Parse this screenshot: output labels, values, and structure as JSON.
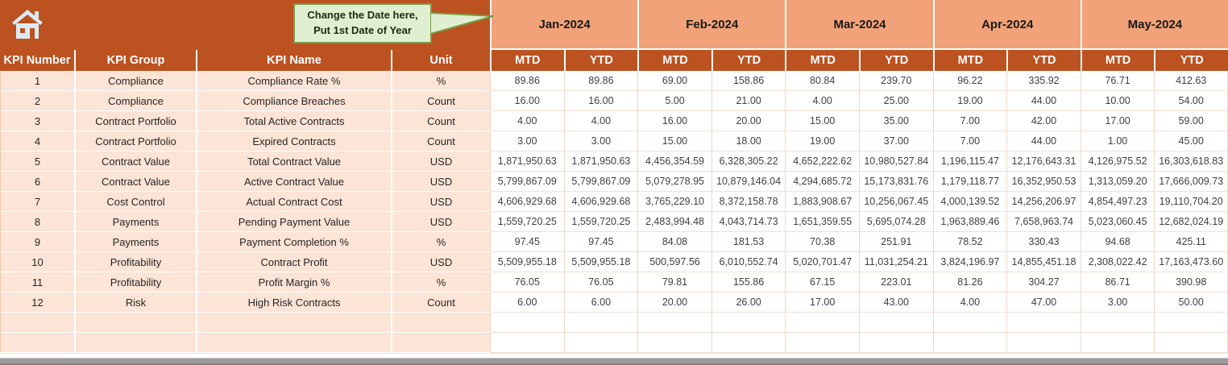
{
  "callout": {
    "line1": "Change the Date here,",
    "line2": "Put 1st Date of Year"
  },
  "header": {
    "kpi_number": "KPI Number",
    "kpi_group": "KPI Group",
    "kpi_name": "KPI Name",
    "unit": "Unit",
    "mtd": "MTD",
    "ytd": "YTD"
  },
  "months": [
    "Jan-2024",
    "Feb-2024",
    "Mar-2024",
    "Apr-2024",
    "May-2024"
  ],
  "icons": {
    "home": "house"
  },
  "colors": {
    "band_orange": "#BC5220",
    "month_peach": "#F1A278",
    "label_peach": "#FCE4D6",
    "callout_bg": "#DFEFD0",
    "callout_border": "#7A9B49",
    "scrollbar_gray": "#9B9B9B"
  },
  "empty_rows": 2,
  "rows": [
    {
      "number": "1",
      "group": "Compliance",
      "name": "Compliance Rate %",
      "unit": "%",
      "values": [
        "89.86",
        "89.86",
        "69.00",
        "158.86",
        "80.84",
        "239.70",
        "96.22",
        "335.92",
        "76.71",
        "412.63"
      ]
    },
    {
      "number": "2",
      "group": "Compliance",
      "name": "Compliance Breaches",
      "unit": "Count",
      "values": [
        "16.00",
        "16.00",
        "5.00",
        "21.00",
        "4.00",
        "25.00",
        "19.00",
        "44.00",
        "10.00",
        "54.00"
      ]
    },
    {
      "number": "3",
      "group": "Contract Portfolio",
      "name": "Total Active Contracts",
      "unit": "Count",
      "values": [
        "4.00",
        "4.00",
        "16.00",
        "20.00",
        "15.00",
        "35.00",
        "7.00",
        "42.00",
        "17.00",
        "59.00"
      ]
    },
    {
      "number": "4",
      "group": "Contract Portfolio",
      "name": "Expired Contracts",
      "unit": "Count",
      "values": [
        "3.00",
        "3.00",
        "15.00",
        "18.00",
        "19.00",
        "37.00",
        "7.00",
        "44.00",
        "1.00",
        "45.00"
      ]
    },
    {
      "number": "5",
      "group": "Contract Value",
      "name": "Total Contract Value",
      "unit": "USD",
      "values": [
        "1,871,950.63",
        "1,871,950.63",
        "4,456,354.59",
        "6,328,305.22",
        "4,652,222.62",
        "10,980,527.84",
        "1,196,115.47",
        "12,176,643.31",
        "4,126,975.52",
        "16,303,618.83"
      ]
    },
    {
      "number": "6",
      "group": "Contract Value",
      "name": "Active Contract Value",
      "unit": "USD",
      "values": [
        "5,799,867.09",
        "5,799,867.09",
        "5,079,278.95",
        "10,879,146.04",
        "4,294,685.72",
        "15,173,831.76",
        "1,179,118.77",
        "16,352,950.53",
        "1,313,059.20",
        "17,666,009.73"
      ]
    },
    {
      "number": "7",
      "group": "Cost Control",
      "name": "Actual Contract Cost",
      "unit": "USD",
      "values": [
        "4,606,929.68",
        "4,606,929.68",
        "3,765,229.10",
        "8,372,158.78",
        "1,883,908.67",
        "10,256,067.45",
        "4,000,139.52",
        "14,256,206.97",
        "4,854,497.23",
        "19,110,704.20"
      ]
    },
    {
      "number": "8",
      "group": "Payments",
      "name": "Pending Payment Value",
      "unit": "USD",
      "values": [
        "1,559,720.25",
        "1,559,720.25",
        "2,483,994.48",
        "4,043,714.73",
        "1,651,359.55",
        "5,695,074.28",
        "1,963,889.46",
        "7,658,963.74",
        "5,023,060.45",
        "12,682,024.19"
      ]
    },
    {
      "number": "9",
      "group": "Payments",
      "name": "Payment Completion %",
      "unit": "%",
      "values": [
        "97.45",
        "97.45",
        "84.08",
        "181.53",
        "70.38",
        "251.91",
        "78.52",
        "330.43",
        "94.68",
        "425.11"
      ]
    },
    {
      "number": "10",
      "group": "Profitability",
      "name": "Contract Profit",
      "unit": "USD",
      "values": [
        "5,509,955.18",
        "5,509,955.18",
        "500,597.56",
        "6,010,552.74",
        "5,020,701.47",
        "11,031,254.21",
        "3,824,196.97",
        "14,855,451.18",
        "2,308,022.42",
        "17,163,473.60"
      ]
    },
    {
      "number": "11",
      "group": "Profitability",
      "name": "Profit Margin %",
      "unit": "%",
      "values": [
        "76.05",
        "76.05",
        "79.81",
        "155.86",
        "67.15",
        "223.01",
        "81.26",
        "304.27",
        "86.71",
        "390.98"
      ]
    },
    {
      "number": "12",
      "group": "Risk",
      "name": "High Risk Contracts",
      "unit": "Count",
      "values": [
        "6.00",
        "6.00",
        "20.00",
        "26.00",
        "17.00",
        "43.00",
        "4.00",
        "47.00",
        "3.00",
        "50.00"
      ]
    }
  ]
}
